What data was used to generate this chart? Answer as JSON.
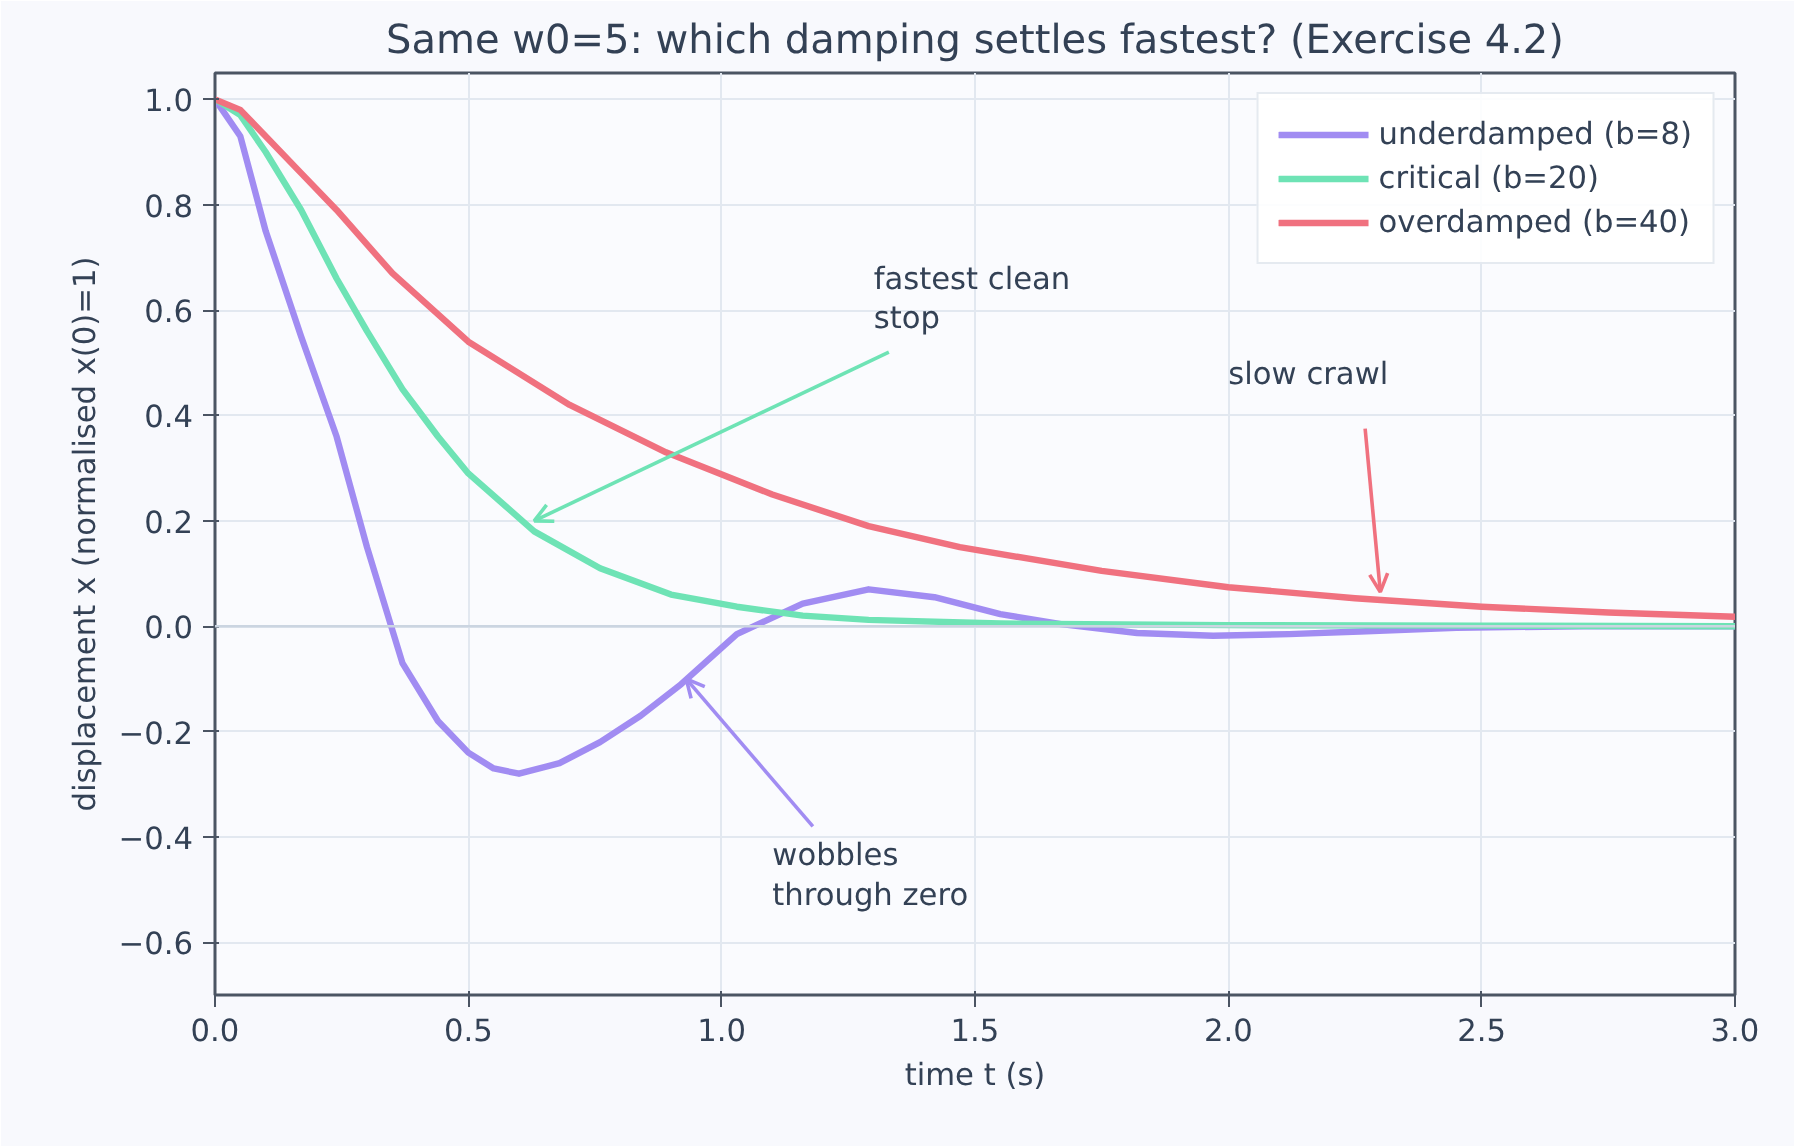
{
  "chart_data": {
    "type": "line",
    "title": "Same w0=5: which damping settles fastest? (Exercise 4.2)",
    "xlabel": "time t (s)",
    "ylabel": "displacement x (normalised x(0)=1)",
    "xlim": [
      0,
      3
    ],
    "ylim": [
      -0.7,
      1.05
    ],
    "xticks": [
      {
        "value": 0,
        "label": "0.0"
      },
      {
        "value": 0.5,
        "label": "0.5"
      },
      {
        "value": 1,
        "label": "1.0"
      },
      {
        "value": 1.5,
        "label": "1.5"
      },
      {
        "value": 2,
        "label": "2.0"
      },
      {
        "value": 2.5,
        "label": "2.5"
      },
      {
        "value": 3,
        "label": "3.0"
      }
    ],
    "yticks": [
      {
        "value": -0.6,
        "label": "−0.6"
      },
      {
        "value": -0.4,
        "label": "−0.4"
      },
      {
        "value": -0.2,
        "label": "−0.2"
      },
      {
        "value": 0,
        "label": "0.0"
      },
      {
        "value": 0.2,
        "label": "0.2"
      },
      {
        "value": 0.4,
        "label": "0.4"
      },
      {
        "value": 0.6,
        "label": "0.6"
      },
      {
        "value": 0.8,
        "label": "0.8"
      },
      {
        "value": 1,
        "label": "1.0"
      }
    ],
    "grid": true,
    "legend": "top right",
    "line_style": "solid",
    "ref_lines": [
      {
        "axis": "y",
        "value": 0,
        "label": null,
        "color": "#cbd5e1"
      }
    ],
    "series": [
      {
        "name": "underdamped (b=8)",
        "color": "#a18cf2",
        "x": [
          0,
          0.05,
          0.1,
          0.17,
          0.24,
          0.3,
          0.37,
          0.44,
          0.5,
          0.55,
          0.6,
          0.68,
          0.76,
          0.84,
          0.92,
          1.03,
          1.16,
          1.29,
          1.42,
          1.55,
          1.67,
          1.82,
          1.97,
          2.12,
          2.26,
          2.45,
          2.7,
          3.0
        ],
        "values": [
          1,
          0.93,
          0.75,
          0.55,
          0.36,
          0.15,
          -0.07,
          -0.18,
          -0.24,
          -0.27,
          -0.28,
          -0.26,
          -0.22,
          -0.17,
          -0.11,
          -0.015,
          0.043,
          0.07,
          0.055,
          0.023,
          0.004,
          -0.013,
          -0.018,
          -0.015,
          -0.01,
          -0.003,
          null,
          0
        ]
      },
      {
        "name": "critical (b=20)",
        "color": "#6ee3b5",
        "x": [
          0,
          0.05,
          0.1,
          0.17,
          0.24,
          0.3,
          0.37,
          0.44,
          0.5,
          0.63,
          0.76,
          0.9,
          1.03,
          1.16,
          1.29,
          1.55,
          2.0,
          2.5,
          3.0
        ],
        "values": [
          1,
          0.97,
          0.9,
          0.79,
          0.66,
          0.56,
          0.45,
          0.36,
          0.29,
          0.18,
          0.11,
          0.06,
          0.037,
          0.02,
          0.012,
          0.005,
          0.002,
          0.001,
          0
        ]
      },
      {
        "name": "overdamped (b=40)",
        "color": "#f0717f",
        "x": [
          0,
          0.05,
          0.1,
          0.17,
          0.24,
          0.35,
          0.5,
          0.7,
          0.89,
          1.1,
          1.29,
          1.47,
          1.75,
          2.0,
          2.25,
          2.5,
          2.75,
          3.0
        ],
        "values": [
          1,
          0.98,
          0.93,
          0.86,
          0.79,
          0.67,
          0.54,
          0.42,
          0.33,
          0.25,
          0.19,
          0.15,
          0.105,
          0.074,
          0.053,
          0.037,
          0.026,
          0.018
        ]
      }
    ],
    "annotations": [
      {
        "text": "fastest clean\nstop",
        "x": 0.63,
        "y": 0.2
      },
      {
        "text": "slow crawl",
        "x": 2.3,
        "y": 0.065
      },
      {
        "text": "wobbles\nthrough zero",
        "x": 0.93,
        "y": -0.1
      }
    ]
  }
}
